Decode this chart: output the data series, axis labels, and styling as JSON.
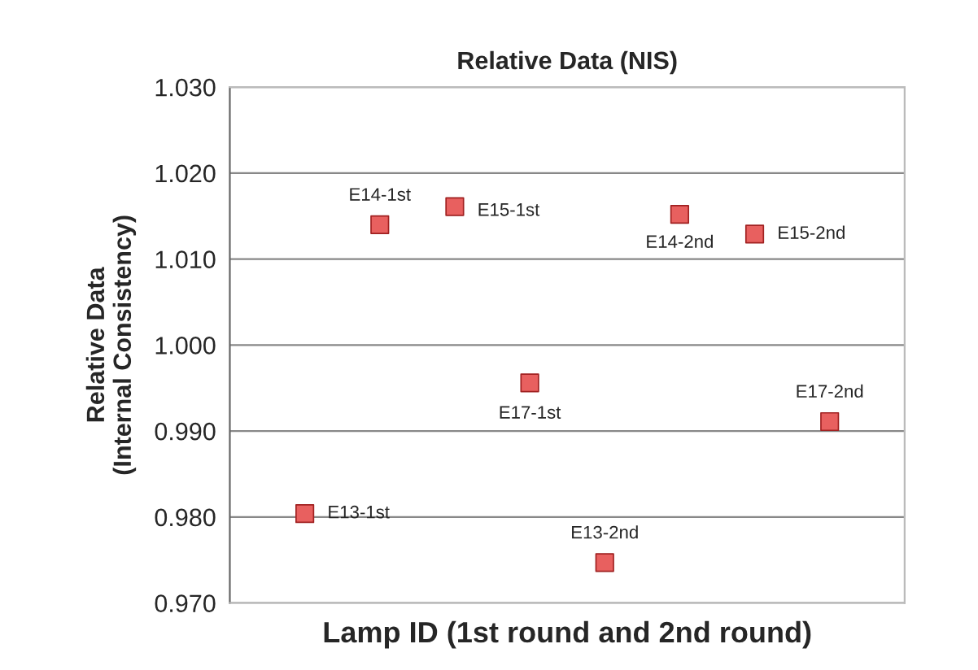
{
  "chart_data": {
    "type": "scatter",
    "title": "Relative Data (NIS)",
    "xlabel": "Lamp ID (1st round and 2nd round)",
    "ylabel": "Relative Data\n(Internal Consistency)",
    "categories": [
      null,
      null,
      null,
      null,
      null,
      null,
      null,
      null
    ],
    "annotations": [
      "E13-1st",
      "E14-1st",
      "E15-1st",
      "E17-1st",
      "E13-2nd",
      "E14-2nd",
      "E15-2nd",
      "E17-2nd"
    ],
    "series": [
      {
        "color": "#e8605f",
        "values": [
          0.9804,
          1.014,
          1.0161,
          0.9956,
          0.9747,
          1.0152,
          1.0129,
          0.9911
        ]
      }
    ],
    "ylim": [
      0.97,
      1.03
    ],
    "yticks": [
      {
        "value": 0.97,
        "label": "0.970"
      },
      {
        "value": 0.98,
        "label": "0.980"
      },
      {
        "value": 0.99,
        "label": "0.990"
      },
      {
        "value": 1.0,
        "label": "1.000"
      },
      {
        "value": 1.01,
        "label": "1.010"
      },
      {
        "value": 1.02,
        "label": "1.020"
      },
      {
        "value": 1.03,
        "label": "1.030"
      }
    ],
    "grid": "y",
    "marker": "square",
    "tick_labels": "y"
  }
}
